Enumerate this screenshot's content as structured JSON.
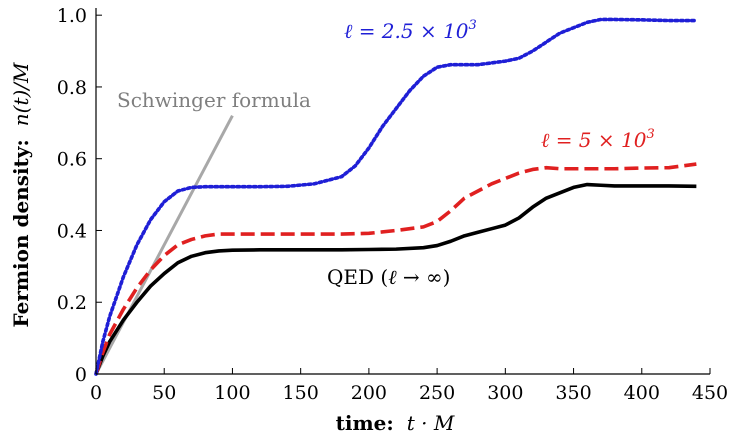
{
  "chart_data": {
    "type": "line",
    "xlabel": {
      "bold": "time:",
      "math": "t · M"
    },
    "ylabel": {
      "bold": "Fermion density:",
      "math": "n(t)/M"
    },
    "xlim": [
      0,
      450
    ],
    "ylim": [
      0,
      1.02
    ],
    "xticks": [
      0,
      50,
      100,
      150,
      200,
      250,
      300,
      350,
      400,
      450
    ],
    "yticks": [
      0,
      0.2,
      0.4,
      0.6,
      0.8,
      1.0
    ],
    "ytick_labels": [
      "0",
      "0.2",
      "0.4",
      "0.6",
      "0.8",
      "1.0"
    ],
    "grid": false,
    "series": [
      {
        "name": "ℓ = 2.5 × 10³",
        "color": "#1f1fd6",
        "style": "dotted",
        "x": [
          0,
          5,
          10,
          20,
          30,
          40,
          50,
          60,
          70,
          80,
          90,
          100,
          120,
          140,
          160,
          180,
          190,
          200,
          210,
          220,
          230,
          240,
          250,
          260,
          280,
          300,
          310,
          320,
          330,
          340,
          350,
          360,
          370,
          380,
          400,
          420,
          440
        ],
        "y": [
          0,
          0.09,
          0.16,
          0.27,
          0.36,
          0.43,
          0.48,
          0.51,
          0.52,
          0.522,
          0.522,
          0.522,
          0.522,
          0.523,
          0.53,
          0.55,
          0.58,
          0.63,
          0.69,
          0.74,
          0.79,
          0.83,
          0.855,
          0.862,
          0.862,
          0.872,
          0.88,
          0.9,
          0.925,
          0.95,
          0.965,
          0.98,
          0.988,
          0.988,
          0.987,
          0.985,
          0.985
        ]
      },
      {
        "name": "ℓ = 5 × 10³",
        "color": "#e02020",
        "style": "dashed",
        "x": [
          0,
          5,
          10,
          20,
          30,
          40,
          50,
          60,
          70,
          80,
          90,
          100,
          120,
          140,
          160,
          180,
          200,
          220,
          240,
          250,
          260,
          270,
          280,
          290,
          300,
          310,
          320,
          330,
          340,
          360,
          380,
          400,
          420,
          440
        ],
        "y": [
          0,
          0.06,
          0.11,
          0.18,
          0.24,
          0.29,
          0.33,
          0.36,
          0.375,
          0.385,
          0.39,
          0.39,
          0.39,
          0.39,
          0.39,
          0.39,
          0.392,
          0.4,
          0.41,
          0.425,
          0.455,
          0.49,
          0.51,
          0.53,
          0.545,
          0.56,
          0.57,
          0.575,
          0.572,
          0.572,
          0.572,
          0.574,
          0.575,
          0.585
        ]
      },
      {
        "name": "QED (ℓ → ∞)",
        "color": "#000000",
        "style": "solid",
        "x": [
          0,
          5,
          10,
          20,
          30,
          40,
          50,
          60,
          70,
          80,
          90,
          100,
          120,
          140,
          160,
          180,
          200,
          220,
          240,
          250,
          260,
          270,
          280,
          290,
          300,
          310,
          320,
          330,
          340,
          350,
          360,
          370,
          380,
          400,
          420,
          440
        ],
        "y": [
          0,
          0.05,
          0.09,
          0.15,
          0.2,
          0.245,
          0.28,
          0.31,
          0.328,
          0.338,
          0.343,
          0.345,
          0.346,
          0.346,
          0.346,
          0.346,
          0.347,
          0.348,
          0.352,
          0.358,
          0.37,
          0.385,
          0.395,
          0.405,
          0.415,
          0.435,
          0.465,
          0.49,
          0.505,
          0.52,
          0.528,
          0.526,
          0.524,
          0.524,
          0.524,
          0.523
        ]
      },
      {
        "name": "Schwinger formula",
        "color": "#a8a8a8",
        "style": "solid",
        "x": [
          0,
          100
        ],
        "y": [
          0,
          0.72
        ]
      }
    ],
    "annotations": {
      "blue": {
        "math": "ℓ = 2.5 × 10",
        "sup": "3"
      },
      "red": {
        "math": "ℓ = 5 × 10",
        "sup": "3"
      },
      "qed": {
        "prefix": "QED (",
        "math": "ℓ → ∞",
        "suffix": ")"
      },
      "schwinger": "Schwinger formula"
    }
  }
}
